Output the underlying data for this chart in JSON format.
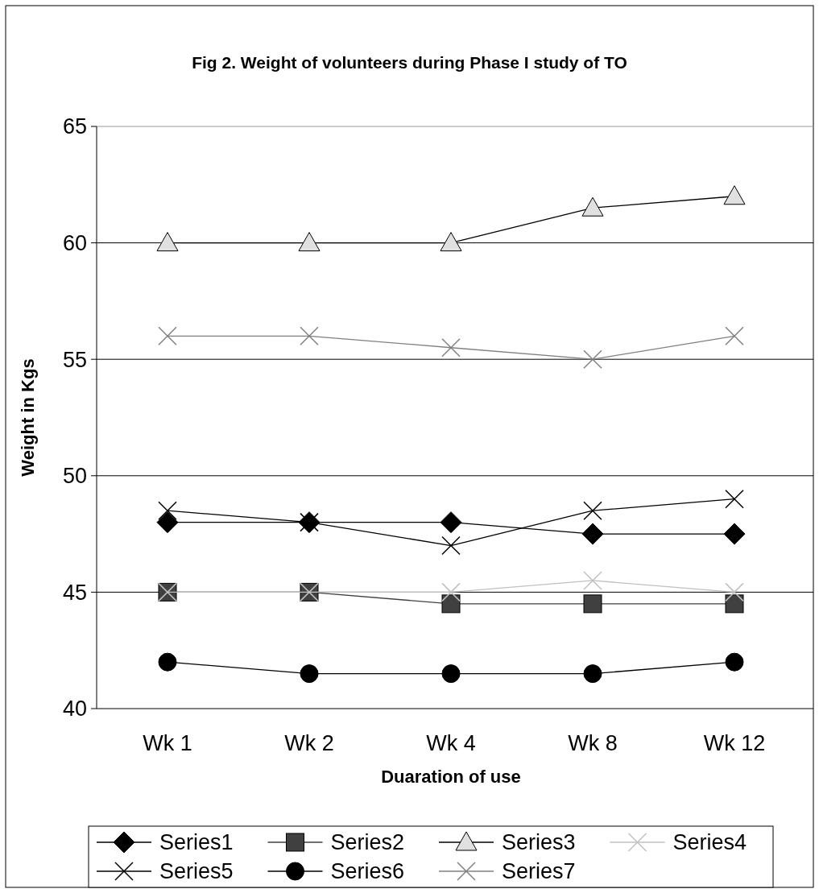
{
  "chart_data": {
    "type": "line",
    "title": "Fig 2. Weight of volunteers during Phase I study of TO",
    "xlabel": "Duaration of use",
    "ylabel": "Weight in Kgs",
    "categories": [
      "Wk 1",
      "Wk 2",
      "Wk 4",
      "Wk 8",
      "Wk 12"
    ],
    "ylim": [
      40,
      65
    ],
    "yticks": [
      40,
      45,
      50,
      55,
      60,
      65
    ],
    "grid": "y",
    "legend": "bottom",
    "line_style": "solid",
    "series": [
      {
        "name": "Series1",
        "color": "#000000",
        "marker": "diamond",
        "values": [
          48,
          48,
          48,
          47.5,
          47.5
        ]
      },
      {
        "name": "Series2",
        "color": "#404040",
        "marker": "square",
        "values": [
          45,
          45,
          44.5,
          44.5,
          44.5
        ]
      },
      {
        "name": "Series3",
        "color": "#e0e0e0",
        "marker": "triangle",
        "values": [
          60,
          60,
          60,
          61.5,
          62
        ]
      },
      {
        "name": "Series4",
        "color": "#c0c0c0",
        "marker": "cross",
        "values": [
          45,
          45,
          45,
          45.5,
          45
        ]
      },
      {
        "name": "Series5",
        "color": "#000000",
        "marker": "cross",
        "values": [
          48.5,
          48,
          47,
          48.5,
          49
        ]
      },
      {
        "name": "Series6",
        "color": "#000000",
        "marker": "circle",
        "values": [
          42,
          41.5,
          41.5,
          41.5,
          42
        ]
      },
      {
        "name": "Series7",
        "color": "#808080",
        "marker": "cross",
        "values": [
          56,
          56,
          55.5,
          55,
          56
        ]
      }
    ]
  }
}
